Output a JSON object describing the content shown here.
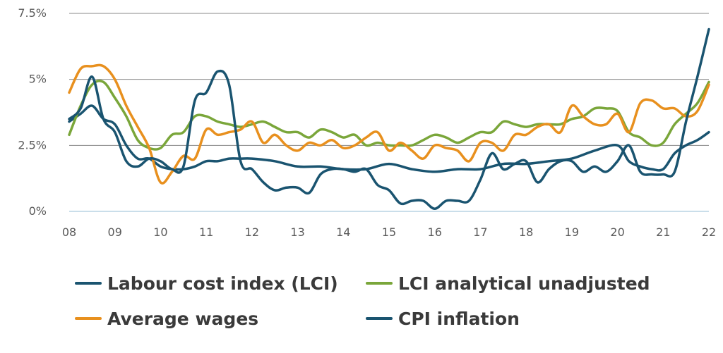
{
  "chart_data": {
    "type": "line",
    "title": "",
    "xlabel": "",
    "ylabel": "",
    "ylim": [
      0,
      7.5
    ],
    "xlim": [
      2008,
      2022
    ],
    "grid": true,
    "legend_position": "bottom",
    "y_ticks": [
      {
        "value": 0,
        "label": "0%"
      },
      {
        "value": 2.5,
        "label": "2.5%"
      },
      {
        "value": 5,
        "label": "5%"
      },
      {
        "value": 7.5,
        "label": "7.5%"
      }
    ],
    "x_ticks": [
      {
        "value": 2008,
        "label": "08"
      },
      {
        "value": 2009,
        "label": "09"
      },
      {
        "value": 2010,
        "label": "10"
      },
      {
        "value": 2011,
        "label": "11"
      },
      {
        "value": 2012,
        "label": "12"
      },
      {
        "value": 2013,
        "label": "13"
      },
      {
        "value": 2014,
        "label": "14"
      },
      {
        "value": 2015,
        "label": "15"
      },
      {
        "value": 2016,
        "label": "16"
      },
      {
        "value": 2017,
        "label": "17"
      },
      {
        "value": 2018,
        "label": "18"
      },
      {
        "value": 2019,
        "label": "19"
      },
      {
        "value": 2020,
        "label": "20"
      },
      {
        "value": 2021,
        "label": "21"
      },
      {
        "value": 2022,
        "label": "22"
      }
    ],
    "series": [
      {
        "name": "Labour cost index (LCI)",
        "color": "#1a5470",
        "x": [
          2008,
          2008.25,
          2008.5,
          2008.75,
          2009,
          2009.25,
          2009.5,
          2009.75,
          2010,
          2010.25,
          2010.5,
          2010.75,
          2011,
          2011.25,
          2011.5,
          2011.75,
          2012,
          2012.5,
          2013,
          2013.5,
          2014,
          2014.5,
          2015,
          2015.5,
          2016,
          2016.5,
          2017,
          2017.5,
          2018,
          2018.5,
          2019,
          2019.5,
          2020,
          2020.25,
          2020.5,
          2020.75,
          2021,
          2021.25,
          2021.5,
          2021.75,
          2022
        ],
        "values": [
          3.4,
          3.7,
          4.0,
          3.5,
          3.3,
          2.5,
          2.0,
          2.0,
          1.7,
          1.6,
          1.6,
          1.7,
          1.9,
          1.9,
          2.0,
          2.0,
          2.0,
          1.9,
          1.7,
          1.7,
          1.6,
          1.6,
          1.8,
          1.6,
          1.5,
          1.6,
          1.6,
          1.8,
          1.8,
          1.9,
          2.0,
          2.3,
          2.5,
          1.9,
          1.7,
          1.6,
          1.6,
          2.2,
          2.5,
          2.7,
          3.0
        ]
      },
      {
        "name": "LCI analytical unadjusted",
        "color": "#7aa63a",
        "x": [
          2008,
          2008.25,
          2008.5,
          2008.75,
          2009,
          2009.25,
          2009.5,
          2009.75,
          2010,
          2010.25,
          2010.5,
          2010.75,
          2011,
          2011.25,
          2011.5,
          2011.75,
          2012,
          2012.25,
          2012.5,
          2012.75,
          2013,
          2013.25,
          2013.5,
          2013.75,
          2014,
          2014.25,
          2014.5,
          2014.75,
          2015,
          2015.25,
          2015.5,
          2015.75,
          2016,
          2016.25,
          2016.5,
          2016.75,
          2017,
          2017.25,
          2017.5,
          2017.75,
          2018,
          2018.25,
          2018.5,
          2018.75,
          2019,
          2019.25,
          2019.5,
          2019.75,
          2020,
          2020.25,
          2020.5,
          2020.75,
          2021,
          2021.25,
          2021.5,
          2021.75,
          2022
        ],
        "values": [
          2.9,
          4.0,
          4.8,
          4.9,
          4.3,
          3.6,
          2.7,
          2.4,
          2.4,
          2.9,
          3.0,
          3.6,
          3.6,
          3.4,
          3.3,
          3.2,
          3.3,
          3.4,
          3.2,
          3.0,
          3.0,
          2.8,
          3.1,
          3.0,
          2.8,
          2.9,
          2.5,
          2.6,
          2.5,
          2.5,
          2.5,
          2.7,
          2.9,
          2.8,
          2.6,
          2.8,
          3.0,
          3.0,
          3.4,
          3.3,
          3.2,
          3.3,
          3.3,
          3.3,
          3.5,
          3.6,
          3.9,
          3.9,
          3.8,
          3.0,
          2.8,
          2.5,
          2.6,
          3.3,
          3.7,
          4.1,
          4.9
        ]
      },
      {
        "name": "Average wages",
        "color": "#e8901e",
        "x": [
          2008,
          2008.25,
          2008.5,
          2008.75,
          2009,
          2009.25,
          2009.5,
          2009.75,
          2010,
          2010.25,
          2010.5,
          2010.75,
          2011,
          2011.25,
          2011.5,
          2011.75,
          2012,
          2012.25,
          2012.5,
          2012.75,
          2013,
          2013.25,
          2013.5,
          2013.75,
          2014,
          2014.25,
          2014.5,
          2014.75,
          2015,
          2015.25,
          2015.5,
          2015.75,
          2016,
          2016.25,
          2016.5,
          2016.75,
          2017,
          2017.25,
          2017.5,
          2017.75,
          2018,
          2018.25,
          2018.5,
          2018.75,
          2019,
          2019.25,
          2019.5,
          2019.75,
          2020,
          2020.25,
          2020.5,
          2020.75,
          2021,
          2021.25,
          2021.5,
          2021.75,
          2022
        ],
        "values": [
          4.5,
          5.4,
          5.5,
          5.5,
          5.0,
          4.0,
          3.2,
          2.4,
          1.1,
          1.5,
          2.1,
          2.0,
          3.1,
          2.9,
          3.0,
          3.1,
          3.4,
          2.6,
          2.9,
          2.5,
          2.3,
          2.6,
          2.5,
          2.7,
          2.4,
          2.5,
          2.8,
          3.0,
          2.3,
          2.6,
          2.3,
          2.0,
          2.5,
          2.4,
          2.3,
          1.9,
          2.6,
          2.6,
          2.3,
          2.9,
          2.9,
          3.2,
          3.3,
          3.0,
          4.0,
          3.6,
          3.3,
          3.3,
          3.7,
          3.0,
          4.1,
          4.2,
          3.9,
          3.9,
          3.6,
          3.8,
          4.8
        ]
      },
      {
        "name": "CPI inflation",
        "color": "#1a5470",
        "x": [
          2008,
          2008.25,
          2008.5,
          2008.75,
          2009,
          2009.25,
          2009.5,
          2009.75,
          2010,
          2010.25,
          2010.5,
          2010.75,
          2011,
          2011.25,
          2011.5,
          2011.75,
          2012,
          2012.25,
          2012.5,
          2012.75,
          2013,
          2013.25,
          2013.5,
          2013.75,
          2014,
          2014.25,
          2014.5,
          2014.75,
          2015,
          2015.25,
          2015.5,
          2015.75,
          2016,
          2016.25,
          2016.5,
          2016.75,
          2017,
          2017.25,
          2017.5,
          2017.75,
          2018,
          2018.25,
          2018.5,
          2018.75,
          2019,
          2019.25,
          2019.5,
          2019.75,
          2020,
          2020.25,
          2020.5,
          2020.75,
          2021,
          2021.25,
          2021.5,
          2021.75,
          2022
        ],
        "values": [
          3.5,
          3.9,
          5.1,
          3.5,
          3.0,
          1.9,
          1.7,
          2.0,
          1.9,
          1.6,
          1.7,
          4.2,
          4.5,
          5.3,
          4.8,
          1.9,
          1.6,
          1.1,
          0.8,
          0.9,
          0.9,
          0.7,
          1.4,
          1.6,
          1.6,
          1.5,
          1.6,
          1.0,
          0.8,
          0.3,
          0.4,
          0.4,
          0.1,
          0.4,
          0.4,
          0.4,
          1.2,
          2.2,
          1.6,
          1.8,
          1.9,
          1.1,
          1.6,
          1.9,
          1.9,
          1.5,
          1.7,
          1.5,
          1.9,
          2.5,
          1.5,
          1.4,
          1.4,
          1.5,
          3.4,
          5.1,
          6.9
        ]
      }
    ]
  }
}
